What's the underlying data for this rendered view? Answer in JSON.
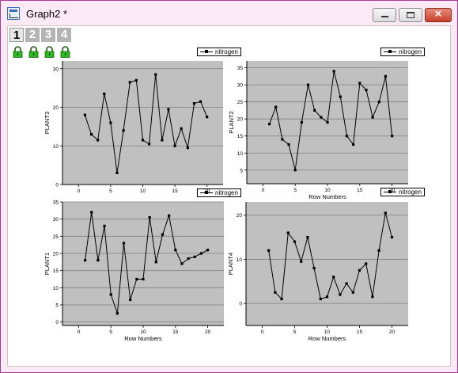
{
  "window": {
    "title": "Graph2 *",
    "buttons": {
      "minimize": "minimize",
      "maximize": "maximize",
      "close": "close"
    }
  },
  "tabs": [
    "1",
    "2",
    "3",
    "4"
  ],
  "layer_icons": [
    "lock-icon",
    "lock-icon",
    "lock-icon",
    "lock-icon"
  ],
  "colors": {
    "plot_background": "#c0c0c0",
    "gridline": "#808080",
    "series": "#000000",
    "window_border": "#a83a9a"
  },
  "chart_data": [
    {
      "type": "line",
      "panel": "top-left",
      "title": "",
      "xlabel": "",
      "ylabel": "PLANT3",
      "legend": [
        "nitrogen"
      ],
      "legend_placement": "top-right",
      "grid": true,
      "xlim": [
        -2.5,
        22.5
      ],
      "ylim": [
        0,
        32
      ],
      "xticks": [
        0,
        5,
        10,
        15,
        20
      ],
      "xtick_labels": [
        "0",
        "5",
        "10",
        "15",
        "20"
      ],
      "yticks": [
        0,
        10,
        20,
        30
      ],
      "ytick_labels": [
        "0",
        "10",
        "20",
        "30"
      ],
      "series": [
        {
          "name": "nitrogen",
          "x": [
            1,
            2,
            3,
            4,
            5,
            6,
            7,
            8,
            9,
            10,
            11,
            12,
            13,
            14,
            15,
            16,
            17,
            18,
            19,
            20
          ],
          "y": [
            18,
            13,
            11.5,
            23.5,
            16,
            3,
            14,
            26.5,
            27,
            11.5,
            10.5,
            28.5,
            11.5,
            19.5,
            10,
            14.5,
            9.5,
            21,
            21.5,
            17.5
          ]
        }
      ]
    },
    {
      "type": "line",
      "panel": "top-right",
      "title": "",
      "xlabel": "Row Numbers",
      "ylabel": "PLANT2",
      "legend": [
        "nitrogen"
      ],
      "legend_placement": "top-right",
      "grid": true,
      "xlim": [
        -2.5,
        22.5
      ],
      "ylim": [
        1,
        37
      ],
      "xticks": [
        0,
        5,
        10,
        15,
        20
      ],
      "xtick_labels": [
        "0",
        "5",
        "10",
        "15",
        "20"
      ],
      "yticks": [
        5,
        10,
        15,
        20,
        25,
        30,
        35
      ],
      "ytick_labels": [
        "5",
        "10",
        "15",
        "20",
        "25",
        "30",
        "35"
      ],
      "series": [
        {
          "name": "nitrogen",
          "x": [
            1,
            2,
            3,
            4,
            5,
            6,
            7,
            8,
            9,
            10,
            11,
            12,
            13,
            14,
            15,
            16,
            17,
            18,
            19,
            20
          ],
          "y": [
            18.5,
            23.5,
            14,
            12.5,
            5,
            19,
            30,
            22.5,
            20.5,
            19,
            34,
            26.5,
            15,
            12.5,
            30.5,
            28.5,
            20.5,
            25,
            32.5,
            15
          ]
        }
      ]
    },
    {
      "type": "line",
      "panel": "bottom-left",
      "title": "",
      "xlabel": "Row Numbers",
      "ylabel": "PLANT1",
      "legend": [
        "nitrogen"
      ],
      "legend_placement": "top-right",
      "grid": true,
      "xlim": [
        -2.5,
        22.5
      ],
      "ylim": [
        -1,
        35
      ],
      "xticks": [
        0,
        5,
        10,
        15,
        20
      ],
      "xtick_labels": [
        "0",
        "5",
        "10",
        "15",
        "20"
      ],
      "yticks": [
        0,
        5,
        10,
        15,
        20,
        25,
        30,
        35
      ],
      "ytick_labels": [
        "0",
        "5",
        "10",
        "15",
        "20",
        "25",
        "30",
        "35"
      ],
      "series": [
        {
          "name": "nitrogen",
          "x": [
            1,
            2,
            3,
            4,
            5,
            6,
            7,
            8,
            9,
            10,
            11,
            12,
            13,
            14,
            15,
            16,
            17,
            18,
            19,
            20
          ],
          "y": [
            18,
            32,
            18,
            28,
            8,
            2.5,
            23,
            6.5,
            12.5,
            12.5,
            30.5,
            17.5,
            25.5,
            31,
            21,
            17,
            18.5,
            19,
            20,
            21
          ]
        }
      ]
    },
    {
      "type": "line",
      "panel": "bottom-right",
      "title": "",
      "xlabel": "Row Numbers",
      "ylabel": "PLANT4",
      "legend": [],
      "grid": true,
      "xlim": [
        -2.5,
        22.5
      ],
      "ylim": [
        -5,
        23
      ],
      "xticks": [
        0,
        5,
        10,
        15,
        20
      ],
      "xtick_labels": [
        "0",
        "5",
        "10",
        "15",
        "20"
      ],
      "yticks": [
        0,
        10,
        20
      ],
      "ytick_labels": [
        "0",
        "10",
        "20"
      ],
      "series": [
        {
          "name": "",
          "x": [
            1,
            2,
            3,
            4,
            5,
            6,
            7,
            8,
            9,
            10,
            11,
            12,
            13,
            14,
            15,
            16,
            17,
            18,
            19,
            20
          ],
          "y": [
            12,
            2.5,
            1,
            16,
            14,
            9.5,
            15,
            8,
            1,
            1.5,
            6,
            2,
            4.5,
            2.5,
            7.5,
            9,
            1.5,
            12,
            20.5,
            15
          ]
        }
      ]
    }
  ]
}
